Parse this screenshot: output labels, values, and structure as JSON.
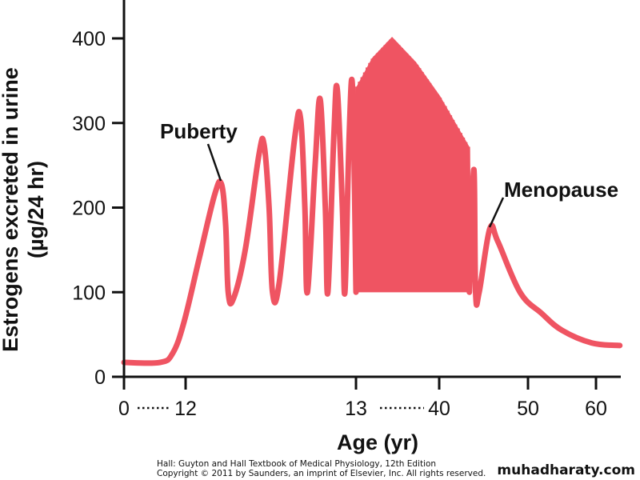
{
  "chart_data": {
    "type": "line",
    "title": "",
    "xlabel": "Age (yr)",
    "ylabel": "Estrogens excreted in urine",
    "ylabel_unit": "(µg/24 hr)",
    "ylim": [
      0,
      400
    ],
    "yticks": [
      0,
      100,
      200,
      300,
      400
    ],
    "xticks": [
      {
        "value": 0,
        "label": "0"
      },
      {
        "value": 12,
        "label": "12"
      },
      {
        "value": 13,
        "label": "13"
      },
      {
        "value": 40,
        "label": "40"
      },
      {
        "value": 50,
        "label": "50"
      },
      {
        "value": 60,
        "label": "60"
      }
    ],
    "axis_breaks": [
      "0-12",
      "13-40"
    ],
    "grid": false,
    "color": "#ef5462",
    "series": [
      {
        "name": "Estrogen excretion",
        "points": [
          [
            0,
            17
          ],
          [
            7,
            17
          ],
          [
            9.5,
            28
          ],
          [
            11.7,
            65
          ],
          [
            12.08,
            140
          ],
          [
            12.17,
            215
          ],
          [
            12.21,
            228
          ],
          [
            12.235,
            180
          ],
          [
            12.25,
            100
          ],
          [
            12.28,
            92
          ],
          [
            12.35,
            150
          ],
          [
            12.43,
            262
          ],
          [
            12.46,
            275
          ],
          [
            12.49,
            200
          ],
          [
            12.51,
            100
          ],
          [
            12.55,
            112
          ],
          [
            12.64,
            282
          ],
          [
            12.675,
            305
          ],
          [
            12.7,
            200
          ],
          [
            12.715,
            100
          ],
          [
            12.76,
            250
          ],
          [
            12.79,
            328
          ],
          [
            12.82,
            200
          ],
          [
            12.835,
            100
          ],
          [
            12.87,
            285
          ],
          [
            12.89,
            340
          ],
          [
            12.92,
            200
          ],
          [
            12.935,
            100
          ],
          [
            12.96,
            285
          ],
          [
            12.98,
            340
          ],
          [
            13,
            100
          ]
        ],
        "cyclic_region": {
          "start_age": 13,
          "end_age": 43.4,
          "cycles": 44,
          "trough": 100,
          "peak_envelope": [
            [
              13,
              340
            ],
            [
              18.2,
              375
            ],
            [
              24.7,
              400
            ],
            [
              32.5,
              370
            ],
            [
              40.1,
              330
            ],
            [
              42.3,
              290
            ],
            [
              43.4,
              270
            ]
          ]
        },
        "points_after": [
          [
            43.4,
            100
          ],
          [
            43.9,
            245
          ],
          [
            44.1,
            100
          ],
          [
            44.5,
            100
          ],
          [
            45.7,
            175
          ],
          [
            46.6,
            160
          ],
          [
            49.1,
            100
          ],
          [
            52,
            75
          ],
          [
            55,
            55
          ],
          [
            59.4,
            40
          ],
          [
            63.5,
            37
          ]
        ]
      }
    ],
    "annotations": [
      {
        "text": "Puberty",
        "age": 12.21,
        "value": 228
      },
      {
        "text": "Menopause",
        "age": 45.7,
        "value": 175
      }
    ]
  },
  "credit": {
    "line1": "Hall: Guyton and Hall Textbook of Medical Physiology, 12th Edition",
    "line2": "Copyright © 2011 by Saunders, an imprint of Elsevier, Inc. All rights reserved."
  },
  "watermark": "muhadharaty.com"
}
